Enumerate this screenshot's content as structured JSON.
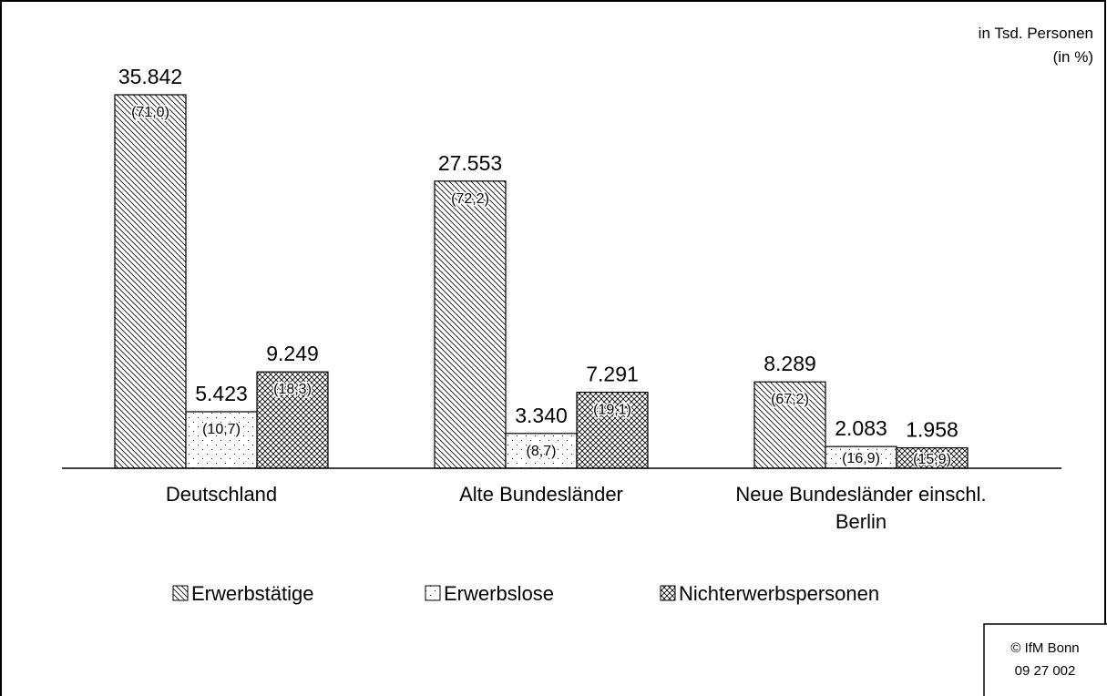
{
  "chart_data": {
    "type": "bar",
    "unit_label": "in Tsd. Personen",
    "share_unit_label": "(in %)",
    "categories": [
      "Deutschland",
      "Alte Bundesländer",
      "Neue Bundesländer einschl. Berlin"
    ],
    "series": [
      {
        "name": "Erwerbstätige",
        "color": "#000000",
        "pattern": "diagonal",
        "values": [
          35842,
          27553,
          8289
        ],
        "value_labels": [
          "35.842",
          "27.553",
          "8.289"
        ],
        "shares": [
          71.0,
          72.2,
          67.2
        ],
        "share_labels": [
          "(71,0)",
          "(72,2)",
          "(67,2)"
        ]
      },
      {
        "name": "Erwerbslose",
        "color": "#000000",
        "pattern": "dots",
        "values": [
          5423,
          3340,
          2083
        ],
        "value_labels": [
          "5.423",
          "3.340",
          "2.083"
        ],
        "shares": [
          10.7,
          8.7,
          16.9
        ],
        "share_labels": [
          "(10,7)",
          "(8,7)",
          "(16,9)"
        ]
      },
      {
        "name": "Nichterwerbspersonen",
        "color": "#000000",
        "pattern": "cross",
        "values": [
          9249,
          7291,
          1958
        ],
        "value_labels": [
          "9.249",
          "7.291",
          "1.958"
        ],
        "shares": [
          18.3,
          19.1,
          15.9
        ],
        "share_labels": [
          "(18,3)",
          "(19,1)",
          "(15,9)"
        ]
      }
    ],
    "legend": "bottom",
    "source": [
      "© IfM Bonn",
      "09 27 002"
    ]
  }
}
